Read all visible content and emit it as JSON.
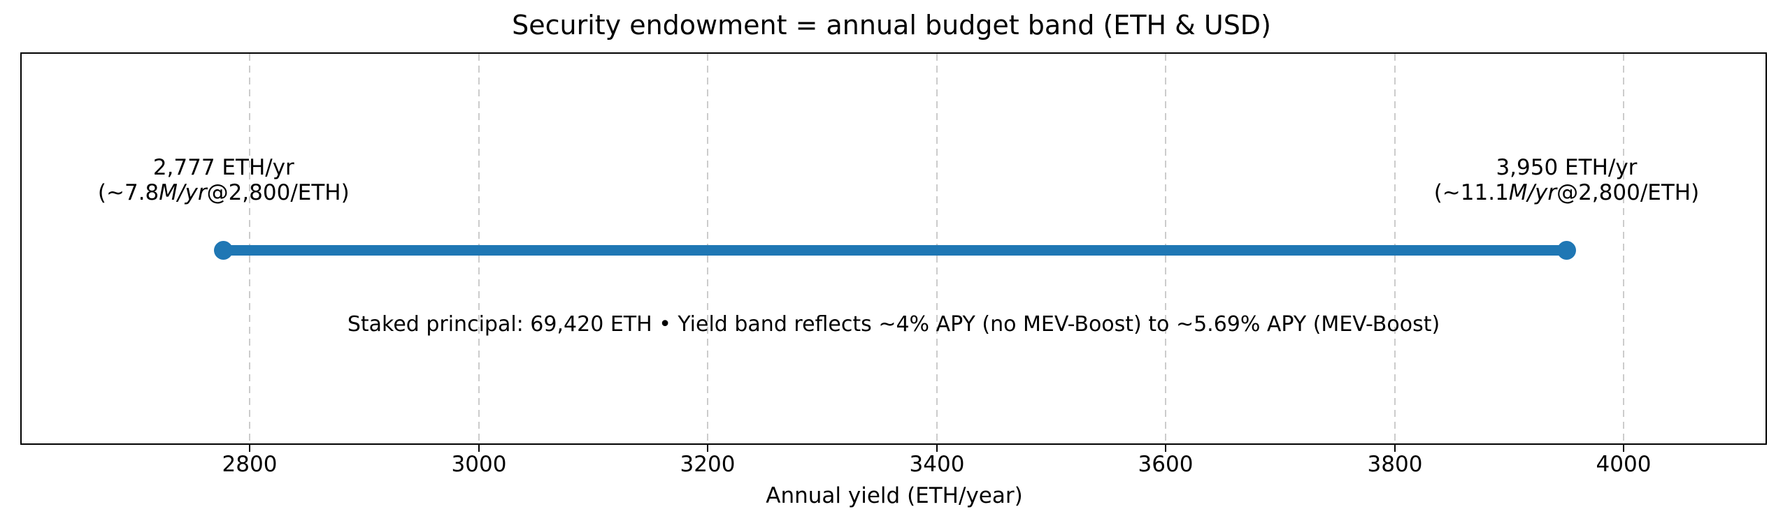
{
  "chart_data": {
    "type": "line",
    "subtype": "range-band-dumbbell",
    "title": "Security endowment = annual budget band (ETH & USD)",
    "xlabel": "Annual yield (ETH/year)",
    "xlim": [
      2600,
      4125
    ],
    "xticks": [
      2800,
      3000,
      3200,
      3400,
      3600,
      3800,
      4000
    ],
    "grid": {
      "axis": "x",
      "style": "dashed",
      "color": "#cccccc"
    },
    "band_color": "#1f77b4",
    "series": [
      {
        "name": "annual budget band",
        "values": [
          2777,
          3950
        ],
        "points": [
          {
            "x": 2777,
            "label_line1": "2,777 ETH/yr",
            "label_line2_parts": [
              {
                "text": "(~7.8",
                "italic": false
              },
              {
                "text": "M/yr",
                "italic": true
              },
              {
                "text": "@2,800/ETH)",
                "italic": false
              }
            ]
          },
          {
            "x": 3950,
            "label_line1": "3,950 ETH/yr",
            "label_line2_parts": [
              {
                "text": "(~11.1",
                "italic": false
              },
              {
                "text": "M/yr",
                "italic": true
              },
              {
                "text": "@2,800/ETH)",
                "italic": false
              }
            ]
          }
        ]
      }
    ],
    "annotation": "Staked principal: 69,420 ETH • Yield band reflects ~4% APY (no MEV-Boost) to ~5.69% APY (MEV-Boost)"
  }
}
